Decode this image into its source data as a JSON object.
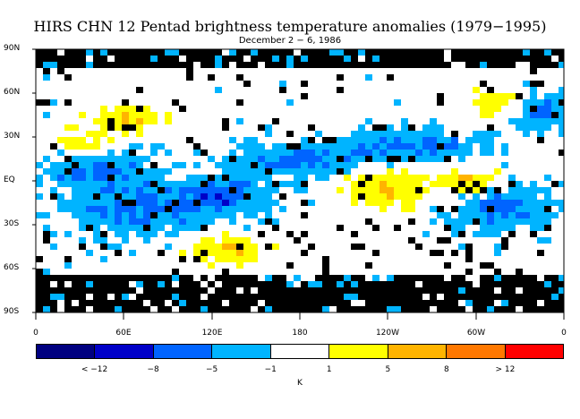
{
  "header": {
    "title": "HIRS CHN 12 Pentad brightness temperature anomalies (1979−1995)",
    "subtitle": "December 2 − 6, 1986"
  },
  "map": {
    "lat_labels": [
      "90N",
      "60N",
      "30N",
      "EQ",
      "30S",
      "60S",
      "90S"
    ],
    "lon_labels": [
      "0",
      "60E",
      "120E",
      "180",
      "120W",
      "60W",
      "0"
    ],
    "missing_color": "#000000",
    "land_outline_color": "#000000"
  },
  "colorbar": {
    "unit": "K",
    "labels": [
      "< −12",
      "−8",
      "−5",
      "−1",
      "1",
      "5",
      "8",
      "> 12"
    ],
    "colors": [
      "#000080",
      "#0000c8",
      "#0064ff",
      "#00b4ff",
      "#ffffff",
      "#ffff00",
      "#ffb400",
      "#ff7800",
      "#ff0000"
    ]
  }
}
